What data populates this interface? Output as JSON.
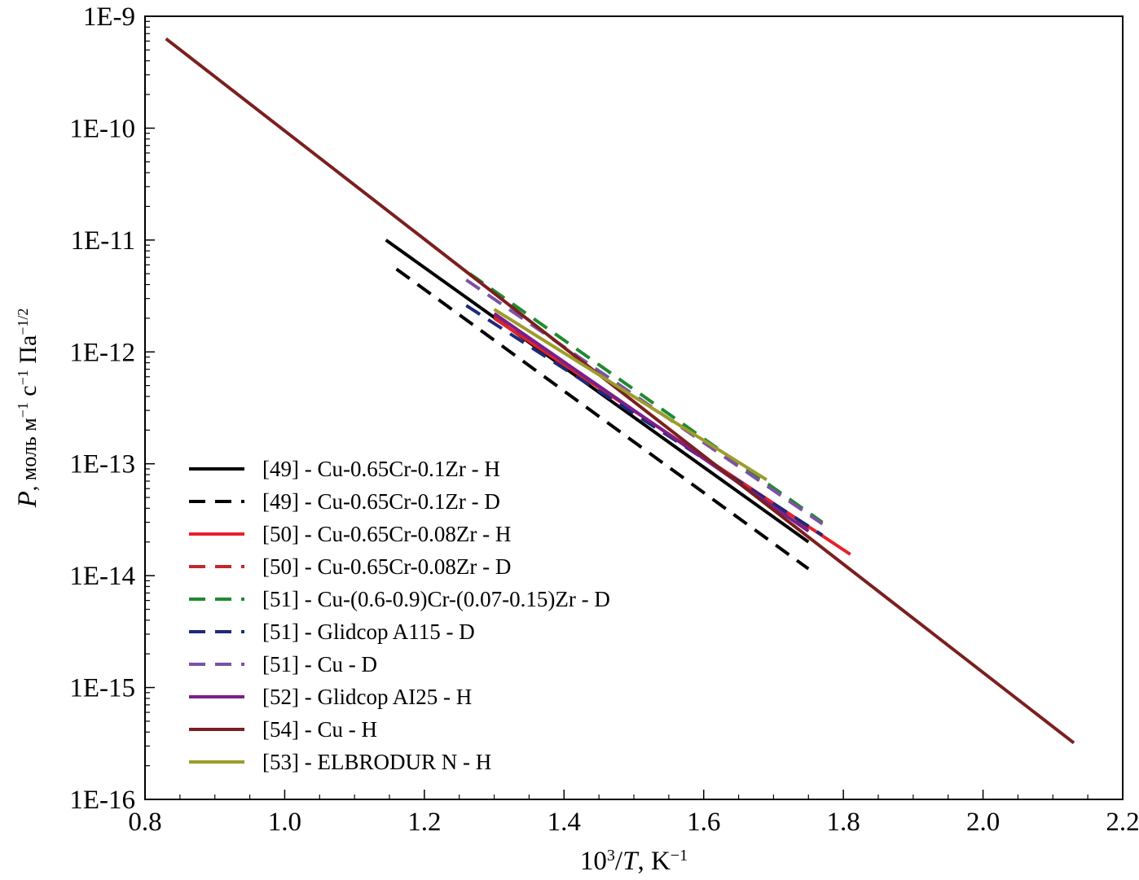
{
  "chart_data": {
    "type": "line",
    "title": "",
    "xlabel": "10³/T, K⁻¹",
    "ylabel": "P, моль м⁻¹ с⁻¹ Па⁻¹/²",
    "xlabel_parts": {
      "base": "10",
      "sup": "3",
      "slash": "/",
      "var": "T",
      "unit": ", K",
      "unit_sup": "−1"
    },
    "ylabel_parts": {
      "var": "P",
      "unit1": ", моль м",
      "sup1": "−1",
      "unit2": " с",
      "sup2": "−1",
      "unit3": " Па",
      "sup3": "−1/2"
    },
    "x_scale": "linear",
    "y_scale": "log",
    "xlim": [
      0.8,
      2.2
    ],
    "ylim_exponent": [
      -16,
      -9
    ],
    "x_ticks": [
      0.8,
      1.0,
      1.2,
      1.4,
      1.6,
      1.8,
      2.0,
      2.2
    ],
    "x_tick_labels": [
      "0.8",
      "1.0",
      "1.2",
      "1.4",
      "1.6",
      "1.8",
      "2.0",
      "2.2"
    ],
    "y_ticks_exponent": [
      -9,
      -10,
      -11,
      -12,
      -13,
      -14,
      -15,
      -16
    ],
    "y_tick_labels": [
      "1E-9",
      "1E-10",
      "1E-11",
      "1E-12",
      "1E-13",
      "1E-14",
      "1E-15",
      "1E-16"
    ],
    "legend_position": "bottom-left",
    "series": [
      {
        "name": "[49] - Cu-0.65Cr-0.1Zr - H",
        "color": "#000000",
        "dash": "solid",
        "x": [
          1.145,
          1.75
        ],
        "y": [
          1e-11,
          2e-14
        ]
      },
      {
        "name": "[49] - Cu-0.65Cr-0.1Zr - D",
        "color": "#000000",
        "dash": "dashed",
        "x": [
          1.16,
          1.75
        ],
        "y": [
          5.5e-12,
          1.15e-14
        ]
      },
      {
        "name": "[50] - Cu-0.65Cr-0.08Zr - H",
        "color": "#e8202a",
        "dash": "solid",
        "x": [
          1.3,
          1.81
        ],
        "y": [
          2e-12,
          1.55e-14
        ]
      },
      {
        "name": "[50] - Cu-0.65Cr-0.08Zr - D",
        "color": "#c0282c",
        "dash": "dashed",
        "x": [
          1.3,
          1.75
        ],
        "y": [
          2.1e-12,
          2.6e-14
        ]
      },
      {
        "name": "[51] - Cu-(0.6-0.9)Cr-(0.07-0.15)Zr - D",
        "color": "#1f8a2e",
        "dash": "dashed",
        "x": [
          1.265,
          1.77
        ],
        "y": [
          5e-12,
          3e-14
        ]
      },
      {
        "name": "[51] - Glidcop A115 - D",
        "color": "#1c2a7a",
        "dash": "dashed",
        "x": [
          1.26,
          1.77
        ],
        "y": [
          2.6e-12,
          2.3e-14
        ]
      },
      {
        "name": "[51] - Cu - D",
        "color": "#7b52a6",
        "dash": "dashed",
        "x": [
          1.26,
          1.77
        ],
        "y": [
          4.4e-12,
          2.9e-14
        ]
      },
      {
        "name": "[52] - Glidcop AI25 - H",
        "color": "#7a1f8c",
        "dash": "solid",
        "x": [
          1.3,
          1.75
        ],
        "y": [
          2.2e-12,
          2.5e-14
        ]
      },
      {
        "name": "[54] - Cu - H",
        "color": "#7b1f1f",
        "dash": "solid",
        "x": [
          0.83,
          2.13
        ],
        "y": [
          6.3e-10,
          3.2e-16
        ]
      },
      {
        "name": "[53] - ELBRODUR N - H",
        "color": "#9c9c2c",
        "dash": "solid",
        "x": [
          1.3,
          1.69
        ],
        "y": [
          2.4e-12,
          7.2e-14
        ]
      }
    ]
  }
}
